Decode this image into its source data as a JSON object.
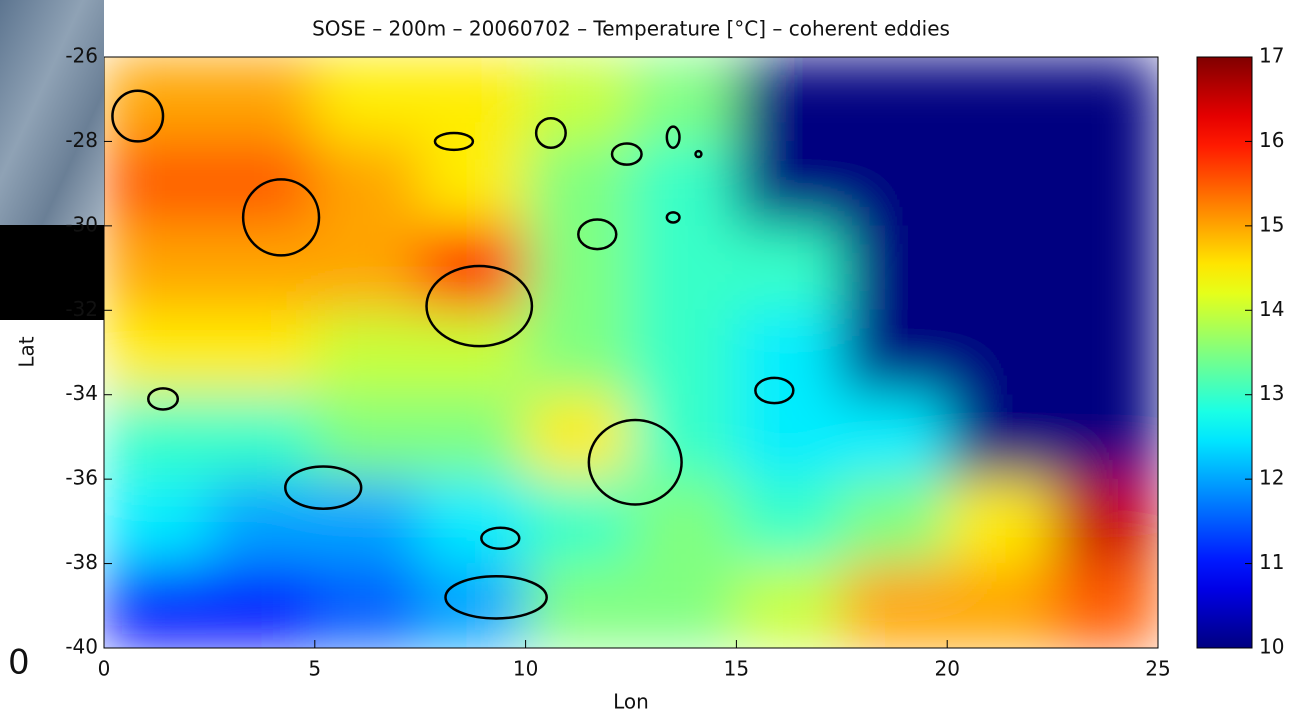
{
  "chart_data": {
    "type": "heatmap",
    "title": "SOSE – 200m – 20060702 – Temperature [°C] – coherent eddies",
    "xlabel": "Lon",
    "ylabel": "Lat",
    "xlim": [
      0,
      25
    ],
    "ylim": [
      -40,
      -26
    ],
    "xticks": [
      0,
      5,
      10,
      15,
      20,
      25
    ],
    "yticks": [
      -26,
      -28,
      -30,
      -32,
      -34,
      -36,
      -38,
      -40
    ],
    "zlim": [
      10,
      17
    ],
    "zticks": [
      10,
      11,
      12,
      13,
      14,
      15,
      16,
      17
    ],
    "colormap": "jet",
    "x": [
      1.25,
      3.75,
      6.25,
      8.75,
      11.25,
      13.75,
      16.25,
      18.75,
      21.25,
      23.75
    ],
    "y": [
      -27,
      -29,
      -31,
      -33,
      -35,
      -37,
      -39
    ],
    "z": [
      [
        15,
        15,
        14.5,
        14.5,
        14,
        13.5,
        10,
        10,
        10,
        10
      ],
      [
        15.5,
        15.5,
        15,
        14.5,
        13.5,
        13,
        10,
        10,
        10,
        10
      ],
      [
        15,
        15,
        15,
        16,
        13.5,
        13,
        13,
        10,
        10,
        10
      ],
      [
        14.5,
        14.5,
        14,
        14,
        13.5,
        13,
        12.5,
        10,
        10,
        10
      ],
      [
        13,
        13,
        13.5,
        13.5,
        14.5,
        13,
        12.5,
        12.5,
        10,
        10
      ],
      [
        12.5,
        12,
        12,
        12.5,
        13,
        13.5,
        13,
        13.5,
        14.5,
        16.5
      ],
      [
        11,
        11,
        11.5,
        12,
        13.5,
        13.5,
        14,
        15,
        15,
        15.5
      ]
    ],
    "eddies": [
      {
        "lon": 0.8,
        "lat": -27.4,
        "rx": 0.6,
        "ry": 0.6
      },
      {
        "lon": 4.2,
        "lat": -29.8,
        "rx": 0.9,
        "ry": 0.9
      },
      {
        "lon": 8.9,
        "lat": -31.9,
        "rx": 1.25,
        "ry": 0.95
      },
      {
        "lon": 12.6,
        "lat": -35.6,
        "rx": 1.1,
        "ry": 1.0
      },
      {
        "lon": 1.4,
        "lat": -34.1,
        "rx": 0.35,
        "ry": 0.25
      },
      {
        "lon": 5.2,
        "lat": -36.2,
        "rx": 0.9,
        "ry": 0.5
      },
      {
        "lon": 9.3,
        "lat": -38.8,
        "rx": 1.2,
        "ry": 0.5
      },
      {
        "lon": 9.4,
        "lat": -37.4,
        "rx": 0.45,
        "ry": 0.25
      },
      {
        "lon": 11.7,
        "lat": -30.2,
        "rx": 0.45,
        "ry": 0.35
      },
      {
        "lon": 10.6,
        "lat": -27.8,
        "rx": 0.35,
        "ry": 0.35
      },
      {
        "lon": 8.3,
        "lat": -28.0,
        "rx": 0.45,
        "ry": 0.2
      },
      {
        "lon": 12.4,
        "lat": -28.3,
        "rx": 0.35,
        "ry": 0.25
      },
      {
        "lon": 13.5,
        "lat": -27.9,
        "rx": 0.15,
        "ry": 0.25
      },
      {
        "lon": 13.5,
        "lat": -29.8,
        "rx": 0.15,
        "ry": 0.12
      },
      {
        "lon": 15.9,
        "lat": -33.9,
        "rx": 0.45,
        "ry": 0.3
      },
      {
        "lon": 14.1,
        "lat": -28.3,
        "rx": 0.07,
        "ry": 0.07
      }
    ]
  },
  "overlay_label": "0"
}
